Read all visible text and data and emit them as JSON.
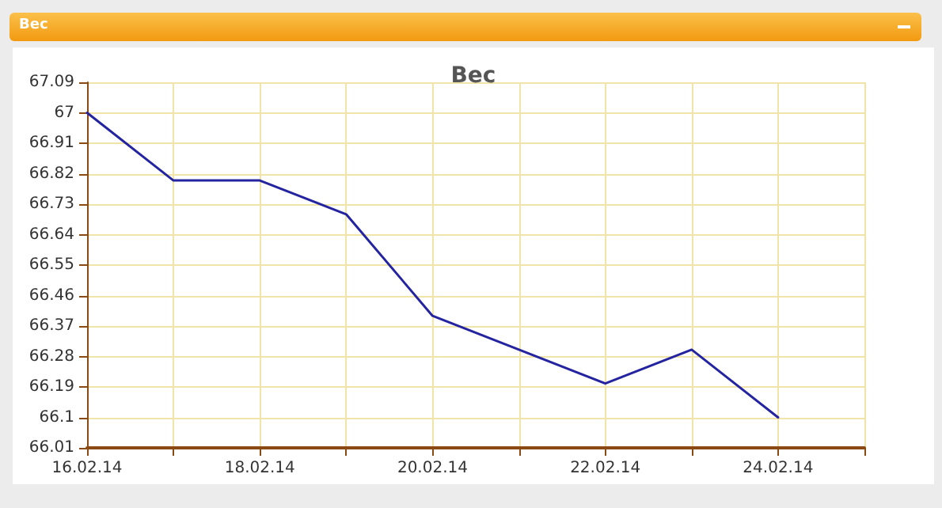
{
  "chart_data": {
    "type": "line",
    "title": "Вес",
    "annotations": [
      "Вес"
    ],
    "categories": [
      "16.02.14",
      null,
      "18.02.14",
      null,
      "20.02.14",
      null,
      "22.02.14",
      null,
      "24.02.14",
      null
    ],
    "series": [
      {
        "color": "#2424a0",
        "values": [
          67,
          66.8,
          66.8,
          66.7,
          66.4,
          66.3,
          66.2,
          66.3,
          66.1,
          null
        ]
      }
    ],
    "ylim": [
      66.01,
      67.09
    ],
    "yticks": [
      66.01,
      66.1,
      66.19,
      66.28,
      66.37,
      66.46,
      66.55,
      66.64,
      66.73,
      66.82,
      66.91,
      67,
      67.09
    ],
    "grid": true,
    "marker": "none",
    "line_style": "solid"
  }
}
